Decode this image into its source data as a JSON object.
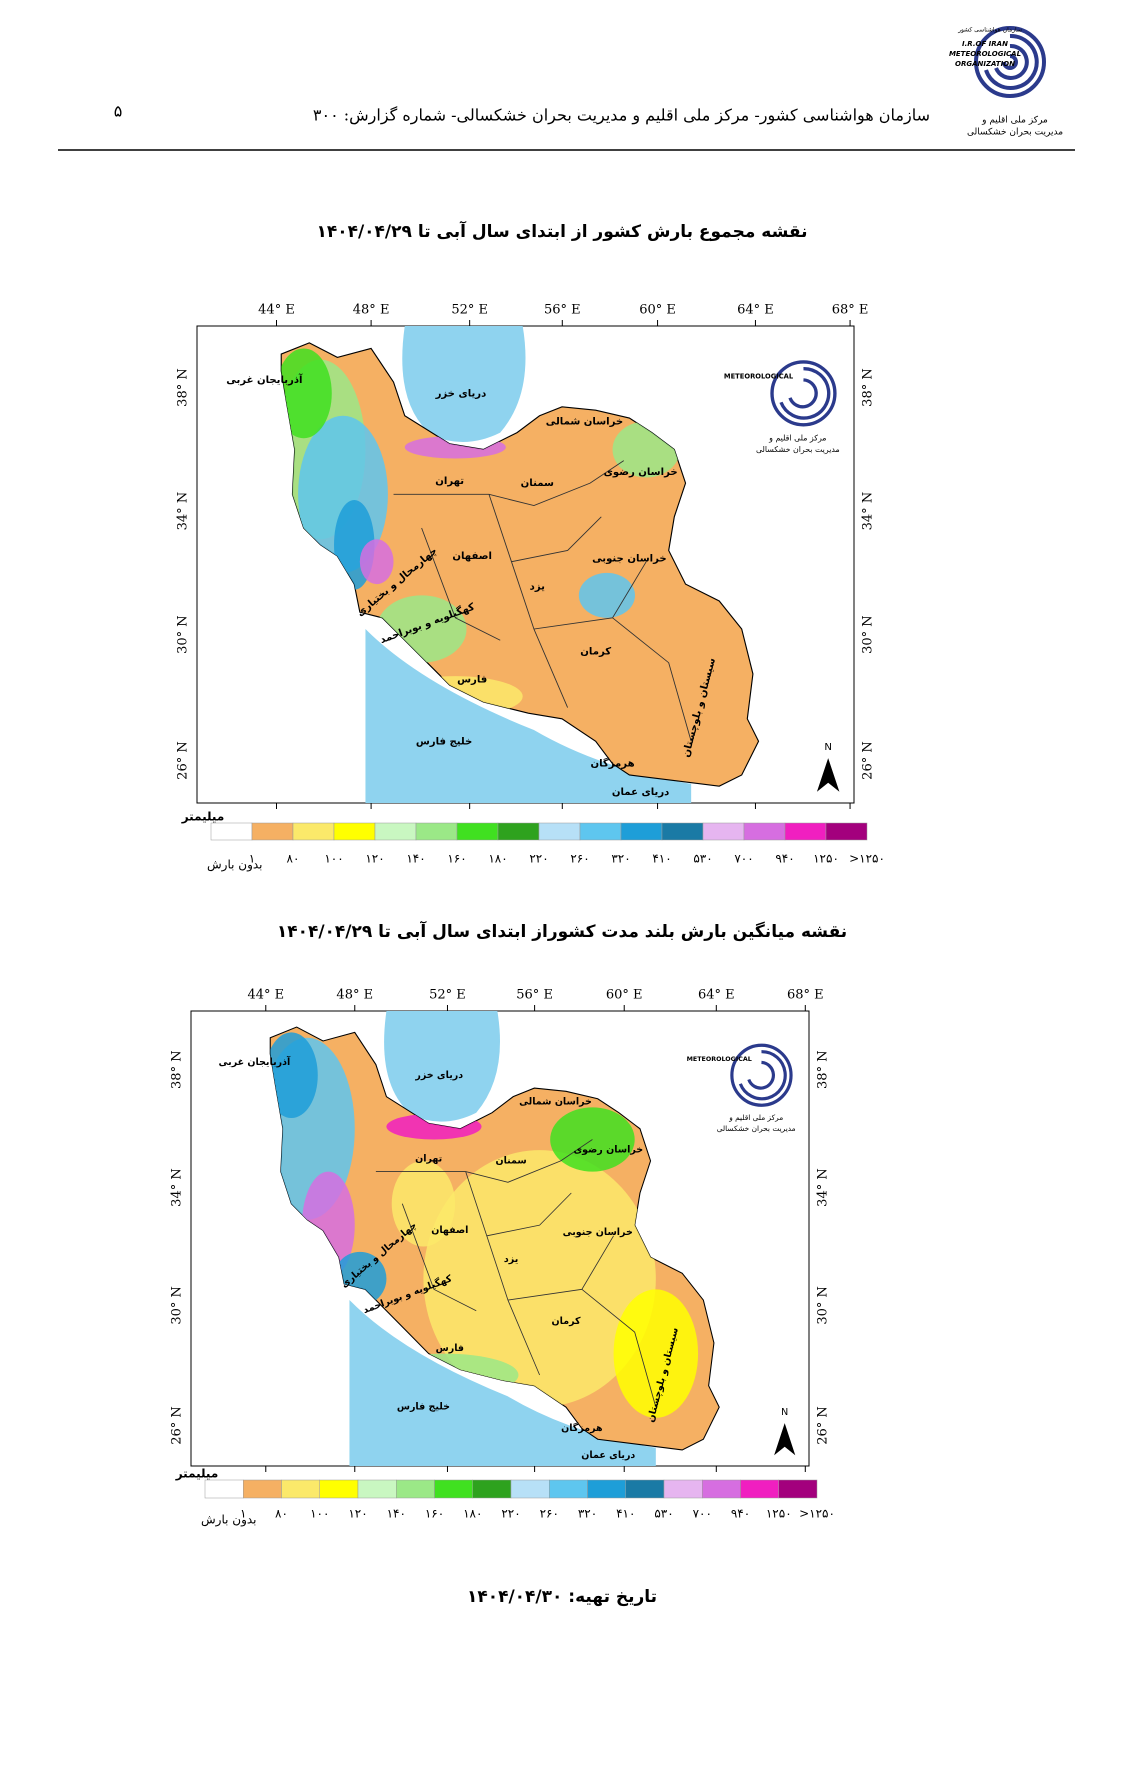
{
  "header": {
    "page_number": "۵",
    "title": "سازمان هواشناسی کشور- مرکز ملی اقلیم و مدیریت بحران خشکسالی- شماره گزارش: ۳۰۰",
    "logo_top": "سازمان هواشناسی کشور",
    "logo_en_1": "I.R.OF IRAN",
    "logo_en_2": "METEOROLOGICAL",
    "logo_en_3": "ORGANIZATION",
    "logo_caption_1": "مرکز ملی اقلیم و",
    "logo_caption_2": "مدیریت بحران خشکسالی"
  },
  "maps": [
    {
      "title": "نقشه مجموع بارش کشور از ابتدای سال آبی تا  ۱۴۰۴/۰۴/۲۹"
    },
    {
      "title": "نقشه میانگین بارش بلند مدت کشوراز ابتدای سال آبی تا  ۱۴۰۴/۰۴/۲۹"
    }
  ],
  "lon_labels": [
    "44° E",
    "48° E",
    "52° E",
    "56° E",
    "60° E",
    "64° E",
    "68° E"
  ],
  "lat_labels": [
    "38° N",
    "34° N",
    "30° N",
    "26° N"
  ],
  "north": "N",
  "places": [
    "دریای خزر",
    "آذربایجان غربی",
    "خراسان شمالی",
    "خراسان رضوی",
    "سمنان",
    "تهران",
    "اصفهان",
    "خراسان جنوبی",
    "یزد",
    "چهارمحال و بختیاری",
    "کهگیلویه و بویراحمد",
    "کرمان",
    "فارس",
    "سیستان و بلوچستان",
    "خلیج فارس",
    "هرمزگان",
    "دریای عمان"
  ],
  "legend": {
    "unit": "میلیمتر",
    "colors": [
      "#ffffff",
      "#f5b063",
      "#fbe96a",
      "#ffff00",
      "#c9f7c1",
      "#9be887",
      "#40e020",
      "#2ea21e",
      "#b7e0f7",
      "#5ec6ef",
      "#1e9ed8",
      "#1a7aa5",
      "#e6b5f0",
      "#d66ee0",
      "#f01fc0",
      "#a3007d"
    ],
    "labels": [
      "بدون بارش",
      "۱",
      "۸۰",
      "۱۰۰",
      "۱۲۰",
      "۱۴۰",
      "۱۶۰",
      "۱۸۰",
      "۲۲۰",
      "۲۶۰",
      "۳۲۰",
      "۴۱۰",
      "۵۳۰",
      "۷۰۰",
      "۹۴۰",
      "۱۲۵۰",
      ">۱۲۵۰"
    ]
  },
  "footer": "تاریخ تهیه: ۱۴۰۴/۰۴/۳۰"
}
